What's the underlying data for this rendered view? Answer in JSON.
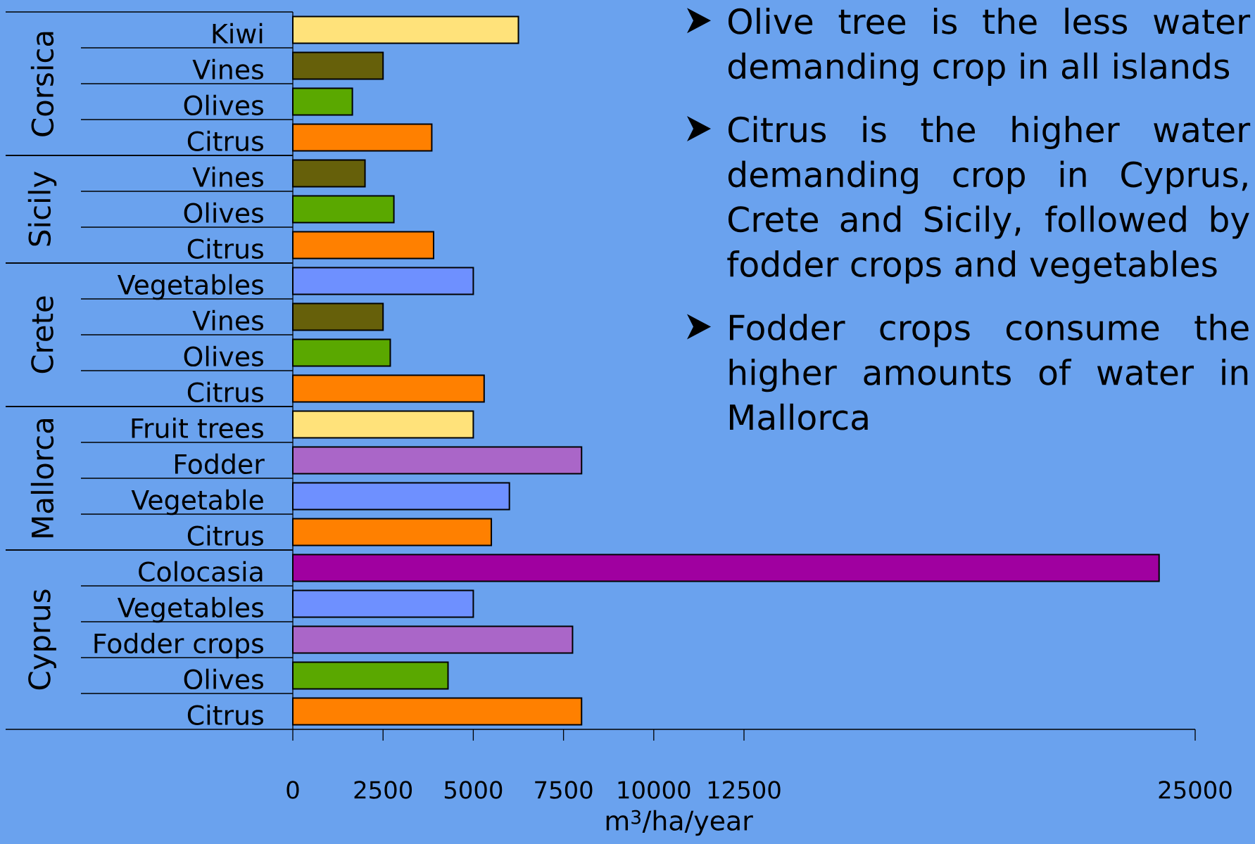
{
  "chart_data": [
    {
      "type": "bar",
      "orientation": "horizontal",
      "ylabel": "Corsica",
      "categories": [
        "Kiwi",
        "Vines",
        "Olives",
        "Citrus"
      ],
      "values": [
        6250,
        2500,
        1650,
        3850
      ],
      "colors": [
        "#ffe27a",
        "#66600a",
        "#5aa800",
        "#ff8000"
      ],
      "xlim": [
        0,
        25000
      ],
      "tick_labels": "y"
    },
    {
      "type": "bar",
      "orientation": "horizontal",
      "ylabel": "Sicily",
      "categories": [
        "Vines",
        "Olives",
        "Citrus"
      ],
      "values": [
        2000,
        2800,
        3900
      ],
      "colors": [
        "#66600a",
        "#5aa800",
        "#ff8000"
      ],
      "xlim": [
        0,
        25000
      ],
      "tick_labels": "y"
    },
    {
      "type": "bar",
      "orientation": "horizontal",
      "ylabel": "Crete",
      "categories": [
        "Vegetables",
        "Vines",
        "Olives",
        "Citrus"
      ],
      "values": [
        5000,
        2500,
        2700,
        5300
      ],
      "colors": [
        "#6e90ff",
        "#66600a",
        "#5aa800",
        "#ff8000"
      ],
      "xlim": [
        0,
        25000
      ],
      "tick_labels": "y"
    },
    {
      "type": "bar",
      "orientation": "horizontal",
      "ylabel": "Mallorca",
      "categories": [
        "Fruit trees",
        "Fodder",
        "Vegetable",
        "Citrus"
      ],
      "values": [
        5000,
        8000,
        6000,
        5500
      ],
      "colors": [
        "#ffe27a",
        "#aa66c8",
        "#6e90ff",
        "#ff8000"
      ],
      "xlim": [
        0,
        25000
      ],
      "tick_labels": "y"
    },
    {
      "type": "bar",
      "orientation": "horizontal",
      "ylabel": "Cyprus",
      "xlabel": "m$^{3}$/ha/year",
      "categories": [
        "Colocasia",
        "Vegetables",
        "Fodder crops",
        "Olives",
        "Citrus"
      ],
      "values": [
        24000,
        5000,
        7750,
        4300,
        8000
      ],
      "colors": [
        "#a000a0",
        "#6e90ff",
        "#aa66c8",
        "#5aa800",
        "#ff8000"
      ],
      "xlim": [
        0,
        25000
      ],
      "xticks": [
        0,
        2500,
        5000,
        7500,
        10000,
        12500,
        25000
      ]
    },
    {
      "type": "other",
      "annotations": [
        "Olive tree is the less water demanding crop in all islands",
        "Citrus is the higher water demanding crop in Cyprus, Crete and Sicily, followed by fodder crops and vegetables",
        "Fodder crops consume the higher amounts of water in Mallorca"
      ]
    }
  ]
}
